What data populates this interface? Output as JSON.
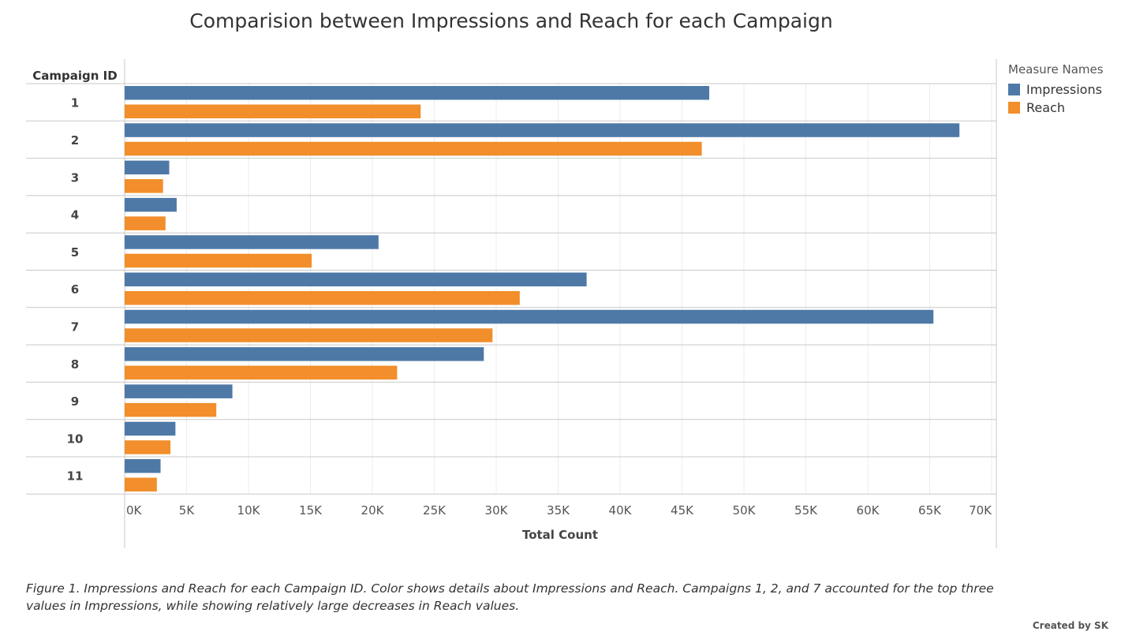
{
  "chart_data": {
    "type": "bar",
    "orientation": "horizontal",
    "title": "Comparision between Impressions and Reach for each Campaign",
    "row_header": "Campaign ID",
    "categories": [
      "1",
      "2",
      "3",
      "4",
      "5",
      "6",
      "7",
      "8",
      "9",
      "10",
      "11"
    ],
    "series": [
      {
        "name": "Impressions",
        "color": "#4E79A7",
        "values": [
          47200,
          67400,
          3600,
          4200,
          20500,
          37300,
          65300,
          29000,
          8700,
          4100,
          2900
        ]
      },
      {
        "name": "Reach",
        "color": "#F28E2B",
        "values": [
          23900,
          46600,
          3100,
          3300,
          15100,
          31900,
          29700,
          22000,
          7400,
          3700,
          2600
        ]
      }
    ],
    "xlabel": "Total Count",
    "xlim": [
      0,
      70000
    ],
    "x_ticks": [
      0,
      5000,
      10000,
      15000,
      20000,
      25000,
      30000,
      35000,
      40000,
      45000,
      50000,
      55000,
      60000,
      65000,
      70000
    ],
    "x_tick_labels": [
      "0K",
      "5K",
      "10K",
      "15K",
      "20K",
      "25K",
      "30K",
      "35K",
      "40K",
      "45K",
      "50K",
      "55K",
      "60K",
      "65K",
      "70K"
    ],
    "grid": true,
    "legend_title": "Measure Names",
    "legend_position": "top-right"
  },
  "caption": "Figure 1. Impressions and Reach for each Campaign ID.  Color shows details about Impressions and Reach. Campaigns 1, 2, and 7 accounted for the top three values in Impressions, while showing relatively large decreases in Reach values.",
  "credit": "Created by SK"
}
